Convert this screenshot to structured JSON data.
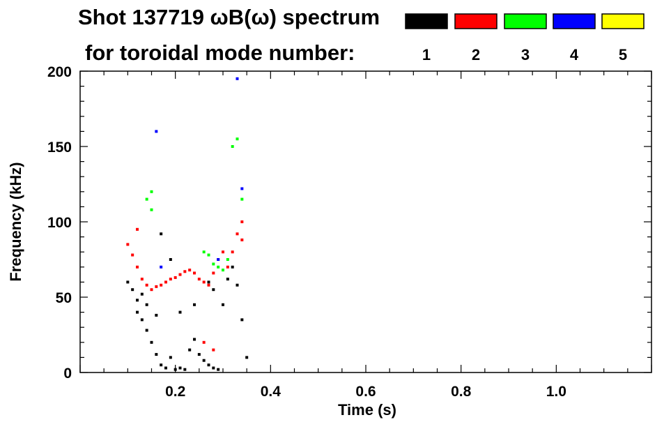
{
  "chart_data": {
    "type": "scatter",
    "title": "Shot 137719 ωB(ω) spectrum",
    "subtitle": "for toroidal mode number:",
    "xlabel": "Time (s)",
    "ylabel": "Frequency (kHz)",
    "xlim": [
      0.0,
      1.2
    ],
    "ylim": [
      0,
      200
    ],
    "xticks": [
      0.2,
      0.4,
      0.6,
      0.8,
      1.0
    ],
    "xtick_labels": [
      "0.2",
      "0.4",
      "0.6",
      "0.8",
      "1.0"
    ],
    "yticks": [
      0,
      50,
      100,
      150,
      200
    ],
    "ytick_labels": [
      "0",
      "50",
      "100",
      "150",
      "200"
    ],
    "grid": false,
    "legend_placement": "top-right",
    "legend": [
      {
        "label": "1",
        "color": "#000000"
      },
      {
        "label": "2",
        "color": "#ff0000"
      },
      {
        "label": "3",
        "color": "#00ff00"
      },
      {
        "label": "4",
        "color": "#0000ff"
      },
      {
        "label": "5",
        "color": "#ffff00"
      }
    ],
    "series": [
      {
        "name": "1",
        "color": "#000000",
        "points": [
          [
            0.1,
            60
          ],
          [
            0.11,
            55
          ],
          [
            0.12,
            48
          ],
          [
            0.12,
            40
          ],
          [
            0.13,
            52
          ],
          [
            0.13,
            35
          ],
          [
            0.14,
            45
          ],
          [
            0.14,
            28
          ],
          [
            0.15,
            20
          ],
          [
            0.16,
            38
          ],
          [
            0.16,
            12
          ],
          [
            0.17,
            5
          ],
          [
            0.18,
            3
          ],
          [
            0.19,
            10
          ],
          [
            0.2,
            2
          ],
          [
            0.21,
            3
          ],
          [
            0.22,
            2
          ],
          [
            0.23,
            15
          ],
          [
            0.24,
            22
          ],
          [
            0.25,
            12
          ],
          [
            0.26,
            8
          ],
          [
            0.27,
            5
          ],
          [
            0.28,
            3
          ],
          [
            0.29,
            2
          ],
          [
            0.3,
            45
          ],
          [
            0.31,
            62
          ],
          [
            0.32,
            70
          ],
          [
            0.33,
            58
          ],
          [
            0.34,
            35
          ],
          [
            0.35,
            10
          ],
          [
            0.21,
            40
          ],
          [
            0.24,
            45
          ],
          [
            0.28,
            55
          ],
          [
            0.17,
            92
          ],
          [
            0.19,
            75
          ],
          [
            0.27,
            60
          ]
        ]
      },
      {
        "name": "2",
        "color": "#ff0000",
        "points": [
          [
            0.1,
            85
          ],
          [
            0.11,
            78
          ],
          [
            0.12,
            70
          ],
          [
            0.13,
            62
          ],
          [
            0.14,
            58
          ],
          [
            0.15,
            55
          ],
          [
            0.16,
            57
          ],
          [
            0.17,
            58
          ],
          [
            0.18,
            60
          ],
          [
            0.19,
            62
          ],
          [
            0.2,
            63
          ],
          [
            0.21,
            65
          ],
          [
            0.22,
            67
          ],
          [
            0.23,
            68
          ],
          [
            0.24,
            66
          ],
          [
            0.25,
            62
          ],
          [
            0.26,
            60
          ],
          [
            0.27,
            58
          ],
          [
            0.28,
            66
          ],
          [
            0.29,
            75
          ],
          [
            0.3,
            80
          ],
          [
            0.31,
            70
          ],
          [
            0.32,
            80
          ],
          [
            0.33,
            92
          ],
          [
            0.34,
            100
          ],
          [
            0.34,
            88
          ],
          [
            0.12,
            95
          ],
          [
            0.26,
            20
          ],
          [
            0.28,
            15
          ]
        ]
      },
      {
        "name": "3",
        "color": "#00ff00",
        "points": [
          [
            0.14,
            115
          ],
          [
            0.15,
            108
          ],
          [
            0.15,
            120
          ],
          [
            0.26,
            80
          ],
          [
            0.27,
            78
          ],
          [
            0.28,
            72
          ],
          [
            0.29,
            70
          ],
          [
            0.3,
            68
          ],
          [
            0.31,
            75
          ],
          [
            0.32,
            150
          ],
          [
            0.33,
            155
          ],
          [
            0.34,
            115
          ]
        ]
      },
      {
        "name": "4",
        "color": "#0000ff",
        "points": [
          [
            0.16,
            160
          ],
          [
            0.17,
            70
          ],
          [
            0.29,
            75
          ],
          [
            0.34,
            122
          ],
          [
            0.33,
            195
          ]
        ]
      }
    ]
  }
}
